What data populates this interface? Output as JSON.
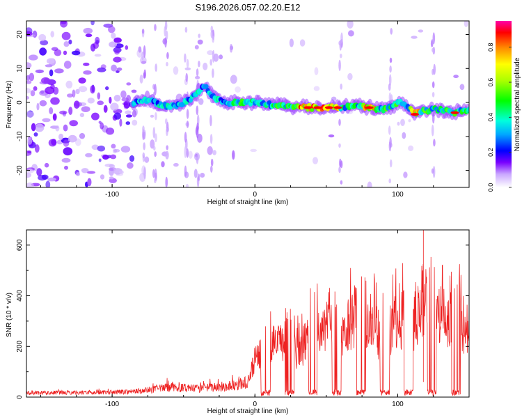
{
  "title": "S196.2026.057.02.20.E12",
  "chart_data": [
    {
      "type": "heatmap",
      "title": "S196.2026.057.02.20.E12",
      "xlabel": "Height of straight line (km)",
      "ylabel": "Frequency (Hz)",
      "xlim": [
        -160,
        150
      ],
      "ylim": [
        -25,
        24
      ],
      "xticks": [
        -100,
        0,
        100
      ],
      "yticks": [
        -20,
        -10,
        0,
        10,
        20
      ],
      "colorbar": {
        "label": "Normalized spectral amplitude",
        "range": [
          0,
          0.95
        ],
        "ticks": [
          0.0,
          0.2,
          0.4,
          0.6,
          0.8
        ]
      },
      "signal_ridge": {
        "description": "strong narrow band near 0 Hz from about -85 km to 150 km; scattered noise left of -80 km",
        "points": [
          {
            "x": -85,
            "y": 0
          },
          {
            "x": -75,
            "y": 1
          },
          {
            "x": -65,
            "y": -1
          },
          {
            "x": -55,
            "y": -1
          },
          {
            "x": -45,
            "y": 1
          },
          {
            "x": -35,
            "y": 5
          },
          {
            "x": -28,
            "y": 1
          },
          {
            "x": -20,
            "y": 0
          },
          {
            "x": 0,
            "y": 0
          },
          {
            "x": 20,
            "y": -1
          },
          {
            "x": 40,
            "y": -1.5
          },
          {
            "x": 55,
            "y": -1.5
          },
          {
            "x": 70,
            "y": -1
          },
          {
            "x": 80,
            "y": -1.5
          },
          {
            "x": 90,
            "y": -2
          },
          {
            "x": 102,
            "y": 0
          },
          {
            "x": 112,
            "y": -3
          },
          {
            "x": 125,
            "y": -2
          },
          {
            "x": 140,
            "y": -3
          },
          {
            "x": 150,
            "y": -2
          }
        ]
      }
    },
    {
      "type": "line",
      "xlabel": "Height of straight line (km)",
      "ylabel": "SNR (10 * v/v)",
      "xlim": [
        -160,
        150
      ],
      "ylim": [
        0,
        660
      ],
      "xticks": [
        -100,
        0,
        100
      ],
      "yticks": [
        0,
        200,
        400,
        600
      ],
      "line_color": "#ee2222",
      "envelope": {
        "x": [
          -160,
          -100,
          -80,
          -60,
          -40,
          -20,
          -5,
          0,
          10,
          20,
          30,
          40,
          50,
          60,
          70,
          80,
          90,
          100,
          110,
          118,
          125,
          135,
          150
        ],
        "y_max": [
          30,
          35,
          45,
          90,
          70,
          90,
          120,
          290,
          360,
          370,
          340,
          460,
          500,
          420,
          550,
          570,
          440,
          570,
          520,
          660,
          560,
          540,
          540
        ],
        "y_typical": [
          18,
          20,
          25,
          40,
          35,
          45,
          60,
          150,
          200,
          220,
          180,
          250,
          280,
          230,
          320,
          300,
          220,
          320,
          280,
          400,
          330,
          300,
          280
        ]
      },
      "notable_peak": {
        "x": 118,
        "y": 660
      }
    }
  ]
}
